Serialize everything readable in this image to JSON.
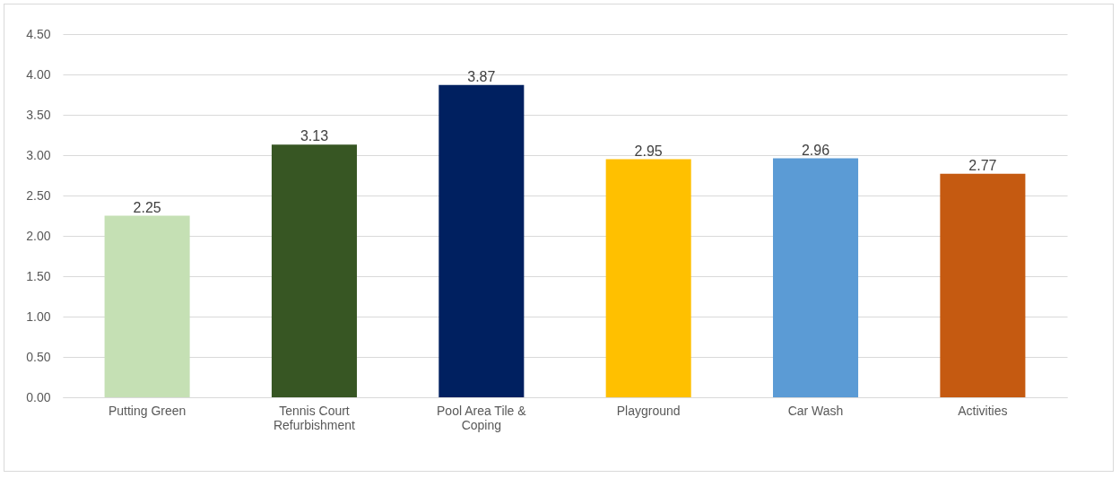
{
  "chart_data": {
    "type": "bar",
    "categories": [
      "Putting Green",
      "Tennis Court Refurbishment",
      "Pool Area Tile & Coping",
      "Playground",
      "Car Wash",
      "Activities"
    ],
    "values": [
      2.25,
      3.13,
      3.87,
      2.95,
      2.96,
      2.77
    ],
    "colors": [
      "#c5e0b4",
      "#375623",
      "#002060",
      "#ffc000",
      "#5b9bd5",
      "#c55a11"
    ],
    "ylim": [
      0,
      4.5
    ],
    "yticks": [
      {
        "value": 0,
        "label": "0.00"
      },
      {
        "value": 0.5,
        "label": "0.50"
      },
      {
        "value": 1,
        "label": "1.00"
      },
      {
        "value": 1.5,
        "label": "1.50"
      },
      {
        "value": 2,
        "label": "2.00"
      },
      {
        "value": 2.5,
        "label": "2.50"
      },
      {
        "value": 3,
        "label": "3.00"
      },
      {
        "value": 3.5,
        "label": "3.50"
      },
      {
        "value": 4,
        "label": "4.00"
      },
      {
        "value": 4.5,
        "label": "4.50"
      }
    ],
    "grid": "y",
    "data_labels": true
  }
}
